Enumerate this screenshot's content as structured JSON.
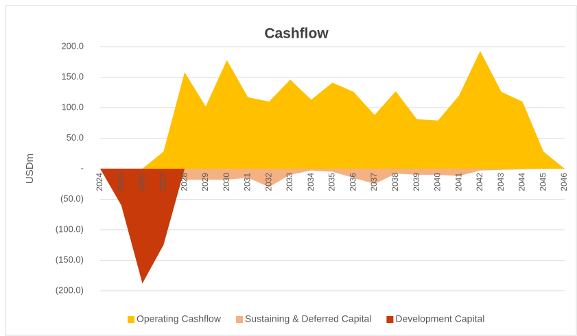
{
  "chart_data": {
    "type": "area",
    "title": "Cashflow",
    "y_label": "USDm",
    "categories": [
      "2024",
      "2025",
      "2026",
      "2027",
      "2028",
      "2029",
      "2030",
      "2031",
      "2032",
      "2033",
      "2034",
      "2035",
      "2036",
      "2037",
      "2038",
      "2039",
      "2040",
      "2041",
      "2042",
      "2043",
      "2044",
      "2045",
      "2046"
    ],
    "series": [
      {
        "name": "Operating Cashflow",
        "color": "#ffc000",
        "values": [
          0,
          0,
          0,
          28,
          158,
          102,
          178,
          117,
          110,
          146,
          113,
          141,
          126,
          88,
          127,
          81,
          79,
          120,
          193,
          126,
          110,
          28,
          0
        ]
      },
      {
        "name": "Sustaining & Deferred Capital",
        "color": "#f4b183",
        "values": [
          0,
          0,
          0,
          0,
          -18,
          -18,
          -18,
          -15,
          -30,
          -10,
          -3,
          -5,
          -15,
          -25,
          -8,
          -10,
          -10,
          -12,
          -3,
          -2,
          -1,
          0,
          0
        ]
      },
      {
        "name": "Development Capital",
        "color": "#c93a0a",
        "values": [
          0,
          -60,
          -188,
          -125,
          0,
          0,
          0,
          0,
          0,
          0,
          0,
          0,
          0,
          0,
          0,
          0,
          0,
          0,
          0,
          0,
          0,
          0,
          0
        ]
      }
    ],
    "ylim": [
      -200,
      200
    ],
    "yticks": [
      {
        "value": -200,
        "label": "(200.0)"
      },
      {
        "value": -150,
        "label": "(150.0)"
      },
      {
        "value": -100,
        "label": "(100.0)"
      },
      {
        "value": -50,
        "label": "(50.0)"
      },
      {
        "value": 0,
        "label": "-"
      },
      {
        "value": 50,
        "label": "50.0"
      },
      {
        "value": 100,
        "label": "100.0"
      },
      {
        "value": 150,
        "label": "150.0"
      },
      {
        "value": 200,
        "label": "200.0"
      }
    ],
    "grid": true,
    "legend": "bottom"
  }
}
